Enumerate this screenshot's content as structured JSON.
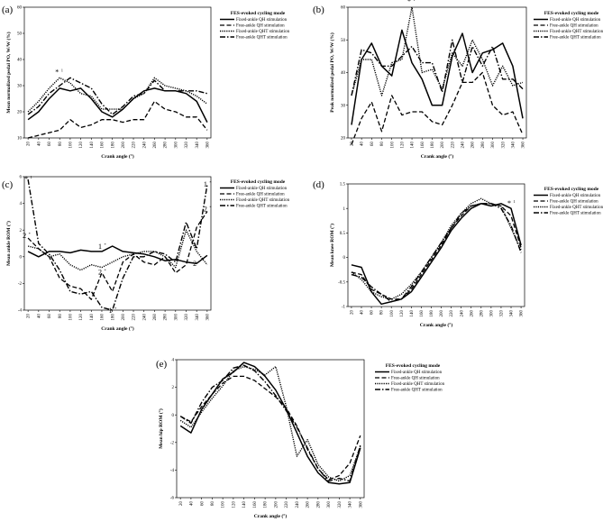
{
  "chart_data": [
    {
      "panel": "(a)",
      "type": "line",
      "ylabel": "Mean normalized pedal PO, W/W (%)",
      "xlabel": "Crank angle (°)",
      "ylim": [
        10,
        60
      ],
      "yticks": [
        10,
        20,
        30,
        40,
        50,
        60
      ],
      "x": [
        20,
        40,
        60,
        80,
        100,
        120,
        140,
        160,
        180,
        200,
        220,
        240,
        260,
        280,
        300,
        320,
        340,
        360
      ],
      "legend_title": "FES-evoked cycling mode",
      "series": [
        {
          "name": "Fixed-ankle QH stimulation",
          "style": "solid",
          "values": [
            17,
            20,
            25,
            29,
            28,
            29,
            25,
            20,
            18,
            21,
            25,
            28,
            29,
            28,
            28,
            27,
            24,
            16
          ]
        },
        {
          "name": "Free-ankle QH stimulation",
          "style": "dashed",
          "values": [
            10,
            11,
            12,
            13,
            17,
            14,
            15,
            17,
            17,
            16,
            17,
            17,
            24,
            21,
            20,
            18,
            18,
            13
          ]
        },
        {
          "name": "Fixed-ankle QHT stimulation",
          "style": "dotted",
          "values": [
            20,
            24,
            29,
            33,
            31,
            27,
            26,
            21,
            21,
            21,
            25,
            27,
            33,
            30,
            29,
            28,
            26,
            23
          ]
        },
        {
          "name": "Free-ankle QHT stimulation",
          "style": "dashdot",
          "values": [
            19,
            22,
            27,
            30,
            33,
            31,
            29,
            23,
            19,
            22,
            26,
            27,
            32,
            28,
            28,
            28,
            28,
            27
          ]
        }
      ],
      "annotations": [
        "*",
        "1",
        "*",
        "1"
      ]
    },
    {
      "panel": "(b)",
      "type": "line",
      "ylabel": "Peak normalized pedal PO, W/W (%)",
      "xlabel": "Crank angle (°)",
      "ylim": [
        20,
        60
      ],
      "yticks": [
        20,
        30,
        40,
        50,
        60
      ],
      "x": [
        20,
        40,
        60,
        80,
        100,
        120,
        140,
        160,
        180,
        200,
        220,
        240,
        260,
        280,
        300,
        320,
        340,
        360
      ],
      "legend_title": "FES-evoked cycling mode",
      "series": [
        {
          "name": "Fixed-ankle QH stimulation",
          "style": "solid",
          "values": [
            24,
            44,
            49,
            42,
            39,
            53,
            43,
            38,
            30,
            30,
            45,
            52,
            40,
            46,
            47,
            49,
            42,
            26
          ]
        },
        {
          "name": "Free-ankle QH stimulation",
          "style": "dashed",
          "values": [
            18,
            26,
            31,
            22,
            33,
            27,
            28,
            28,
            25,
            24,
            30,
            37,
            37,
            40,
            30,
            27,
            28,
            21
          ]
        },
        {
          "name": "Fixed-ankle QHT stimulation",
          "style": "dotted",
          "values": [
            33,
            44,
            44,
            33,
            43,
            44,
            60,
            40,
            41,
            35,
            46,
            42,
            50,
            44,
            36,
            42,
            36,
            37
          ]
        },
        {
          "name": "Free-ankle QHT stimulation",
          "style": "dashdot",
          "values": [
            33,
            47,
            46,
            42,
            42,
            45,
            48,
            43,
            43,
            34,
            50,
            37,
            48,
            42,
            48,
            38,
            38,
            35
          ]
        }
      ],
      "annotations": [
        "*",
        "1"
      ]
    },
    {
      "panel": "(c)",
      "type": "line",
      "ylabel": "Mean ankle ROM (°)",
      "xlabel": "Crank angle (°)",
      "ylim": [
        -4,
        6
      ],
      "yticks": [
        -4,
        -2,
        0,
        2,
        4,
        6
      ],
      "x": [
        20,
        40,
        60,
        80,
        100,
        120,
        140,
        160,
        180,
        200,
        220,
        240,
        260,
        280,
        300,
        320,
        340,
        360
      ],
      "legend_title": "FES-evoked cycling mode",
      "series": [
        {
          "name": "Fixed-ankle QH stimulation",
          "style": "solid",
          "values": [
            0.4,
            0.0,
            0.4,
            0.4,
            0.3,
            0.5,
            0.4,
            0.4,
            0.8,
            0.4,
            0.3,
            0.2,
            0.0,
            -0.3,
            -0.2,
            -0.4,
            -0.5,
            0.1
          ]
        },
        {
          "name": "Free-ankle QH stimulation",
          "style": "dashed",
          "values": [
            1.4,
            0.6,
            0.0,
            -1.6,
            -2.2,
            -2.4,
            -3.2,
            -1.2,
            -2.6,
            -0.4,
            0.2,
            -0.4,
            -0.6,
            0.0,
            -1.2,
            -0.6,
            2.2,
            3.4
          ]
        },
        {
          "name": "Fixed-ankle QHT stimulation",
          "style": "dotted",
          "values": [
            0.8,
            0.6,
            0.0,
            0.2,
            -0.6,
            -1.0,
            -0.6,
            -0.8,
            -0.4,
            0.0,
            0.2,
            0.4,
            0.4,
            0.0,
            -0.8,
            2.0,
            0.4,
            -0.6
          ]
        },
        {
          "name": "Free-ankle QHT stimulation",
          "style": "dashdot",
          "values": [
            5.8,
            1.0,
            0.2,
            -1.0,
            -2.6,
            -2.8,
            -2.6,
            -3.8,
            -4.0,
            -1.6,
            0.0,
            0.0,
            0.4,
            0.2,
            -0.4,
            2.6,
            0.6,
            5.4
          ]
        }
      ],
      "annotations": [
        "*",
        "1",
        "2",
        "*",
        "1",
        "*",
        "2",
        "*",
        "1",
        "*",
        "2",
        "*",
        "1",
        "*",
        "2"
      ]
    },
    {
      "panel": "(d)",
      "type": "line",
      "ylabel": "Mean knee ROM (°)",
      "xlabel": "Crank angle (°)",
      "ylim": [
        -1.0,
        1.5
      ],
      "yticks": [
        -1.0,
        -0.5,
        0.0,
        0.5,
        1.0,
        1.5
      ],
      "x": [
        20,
        40,
        60,
        80,
        100,
        120,
        140,
        160,
        180,
        200,
        220,
        240,
        260,
        280,
        300,
        320,
        340,
        360
      ],
      "legend_title": "FES-evoked cycling mode",
      "series": [
        {
          "name": "Fixed-ankle QH stimulation",
          "style": "solid",
          "values": [
            -0.15,
            -0.2,
            -0.7,
            -0.95,
            -0.9,
            -0.85,
            -0.7,
            -0.4,
            -0.1,
            0.2,
            0.55,
            0.8,
            1.0,
            1.1,
            1.05,
            1.1,
            1.0,
            0.25
          ]
        },
        {
          "name": "Free-ankle QH stimulation",
          "style": "dashed",
          "values": [
            -0.3,
            -0.35,
            -0.65,
            -0.75,
            -0.85,
            -0.85,
            -0.65,
            -0.35,
            -0.05,
            0.25,
            0.6,
            0.85,
            1.05,
            1.1,
            1.1,
            1.05,
            0.85,
            0.2
          ]
        },
        {
          "name": "Fixed-ankle QHT stimulation",
          "style": "dotted",
          "values": [
            -0.3,
            -0.45,
            -0.7,
            -0.8,
            -0.85,
            -0.75,
            -0.55,
            -0.3,
            0.0,
            0.3,
            0.65,
            0.9,
            1.1,
            1.2,
            1.1,
            1.05,
            0.6,
            0.15
          ]
        },
        {
          "name": "Free-ankle QHT stimulation",
          "style": "dashdot",
          "values": [
            -0.35,
            -0.4,
            -0.6,
            -0.75,
            -0.9,
            -0.85,
            -0.6,
            -0.3,
            0.0,
            0.3,
            0.6,
            0.9,
            1.05,
            1.1,
            1.1,
            1.0,
            0.65,
            0.1
          ]
        }
      ],
      "annotations": [
        "*",
        "1"
      ]
    },
    {
      "panel": "(e)",
      "type": "line",
      "ylabel": "Mean hip ROM (°)",
      "xlabel": "Crank angle (°)",
      "ylim": [
        -6,
        4
      ],
      "yticks": [
        -6,
        -4,
        -2,
        0,
        2,
        4
      ],
      "x": [
        20,
        40,
        60,
        80,
        100,
        120,
        140,
        160,
        180,
        200,
        220,
        240,
        260,
        280,
        300,
        320,
        340,
        360
      ],
      "legend_title": "FES-evoked cycling mode",
      "series": [
        {
          "name": "Fixed-ankle QH stimulation",
          "style": "solid",
          "values": [
            -0.8,
            -1.3,
            0.4,
            1.5,
            2.6,
            3.1,
            3.8,
            3.5,
            2.8,
            1.8,
            0.4,
            -1.3,
            -3.0,
            -4.2,
            -4.9,
            -5.0,
            -4.9,
            -2.4
          ]
        },
        {
          "name": "Free-ankle QH stimulation",
          "style": "dashed",
          "values": [
            -0.1,
            -0.5,
            0.6,
            1.5,
            2.3,
            2.8,
            2.8,
            2.5,
            1.9,
            1.3,
            0.5,
            -0.8,
            -2.5,
            -3.9,
            -4.7,
            -4.4,
            -3.5,
            -1.5
          ]
        },
        {
          "name": "Fixed-ankle QHT stimulation",
          "style": "dotted",
          "values": [
            -0.4,
            -0.9,
            0.2,
            1.2,
            2.1,
            3.2,
            3.5,
            3.3,
            2.9,
            3.5,
            0.6,
            -3.0,
            -1.8,
            -3.6,
            -4.5,
            -4.8,
            -4.4,
            -2.3
          ]
        },
        {
          "name": "Free-ankle QHT stimulation",
          "style": "dashdot",
          "values": [
            -0.1,
            -0.6,
            0.9,
            2.0,
            2.5,
            3.4,
            3.6,
            3.2,
            2.4,
            1.4,
            0.3,
            -0.9,
            -2.4,
            -3.9,
            -4.8,
            -4.6,
            -4.8,
            -2.2
          ]
        }
      ]
    }
  ]
}
